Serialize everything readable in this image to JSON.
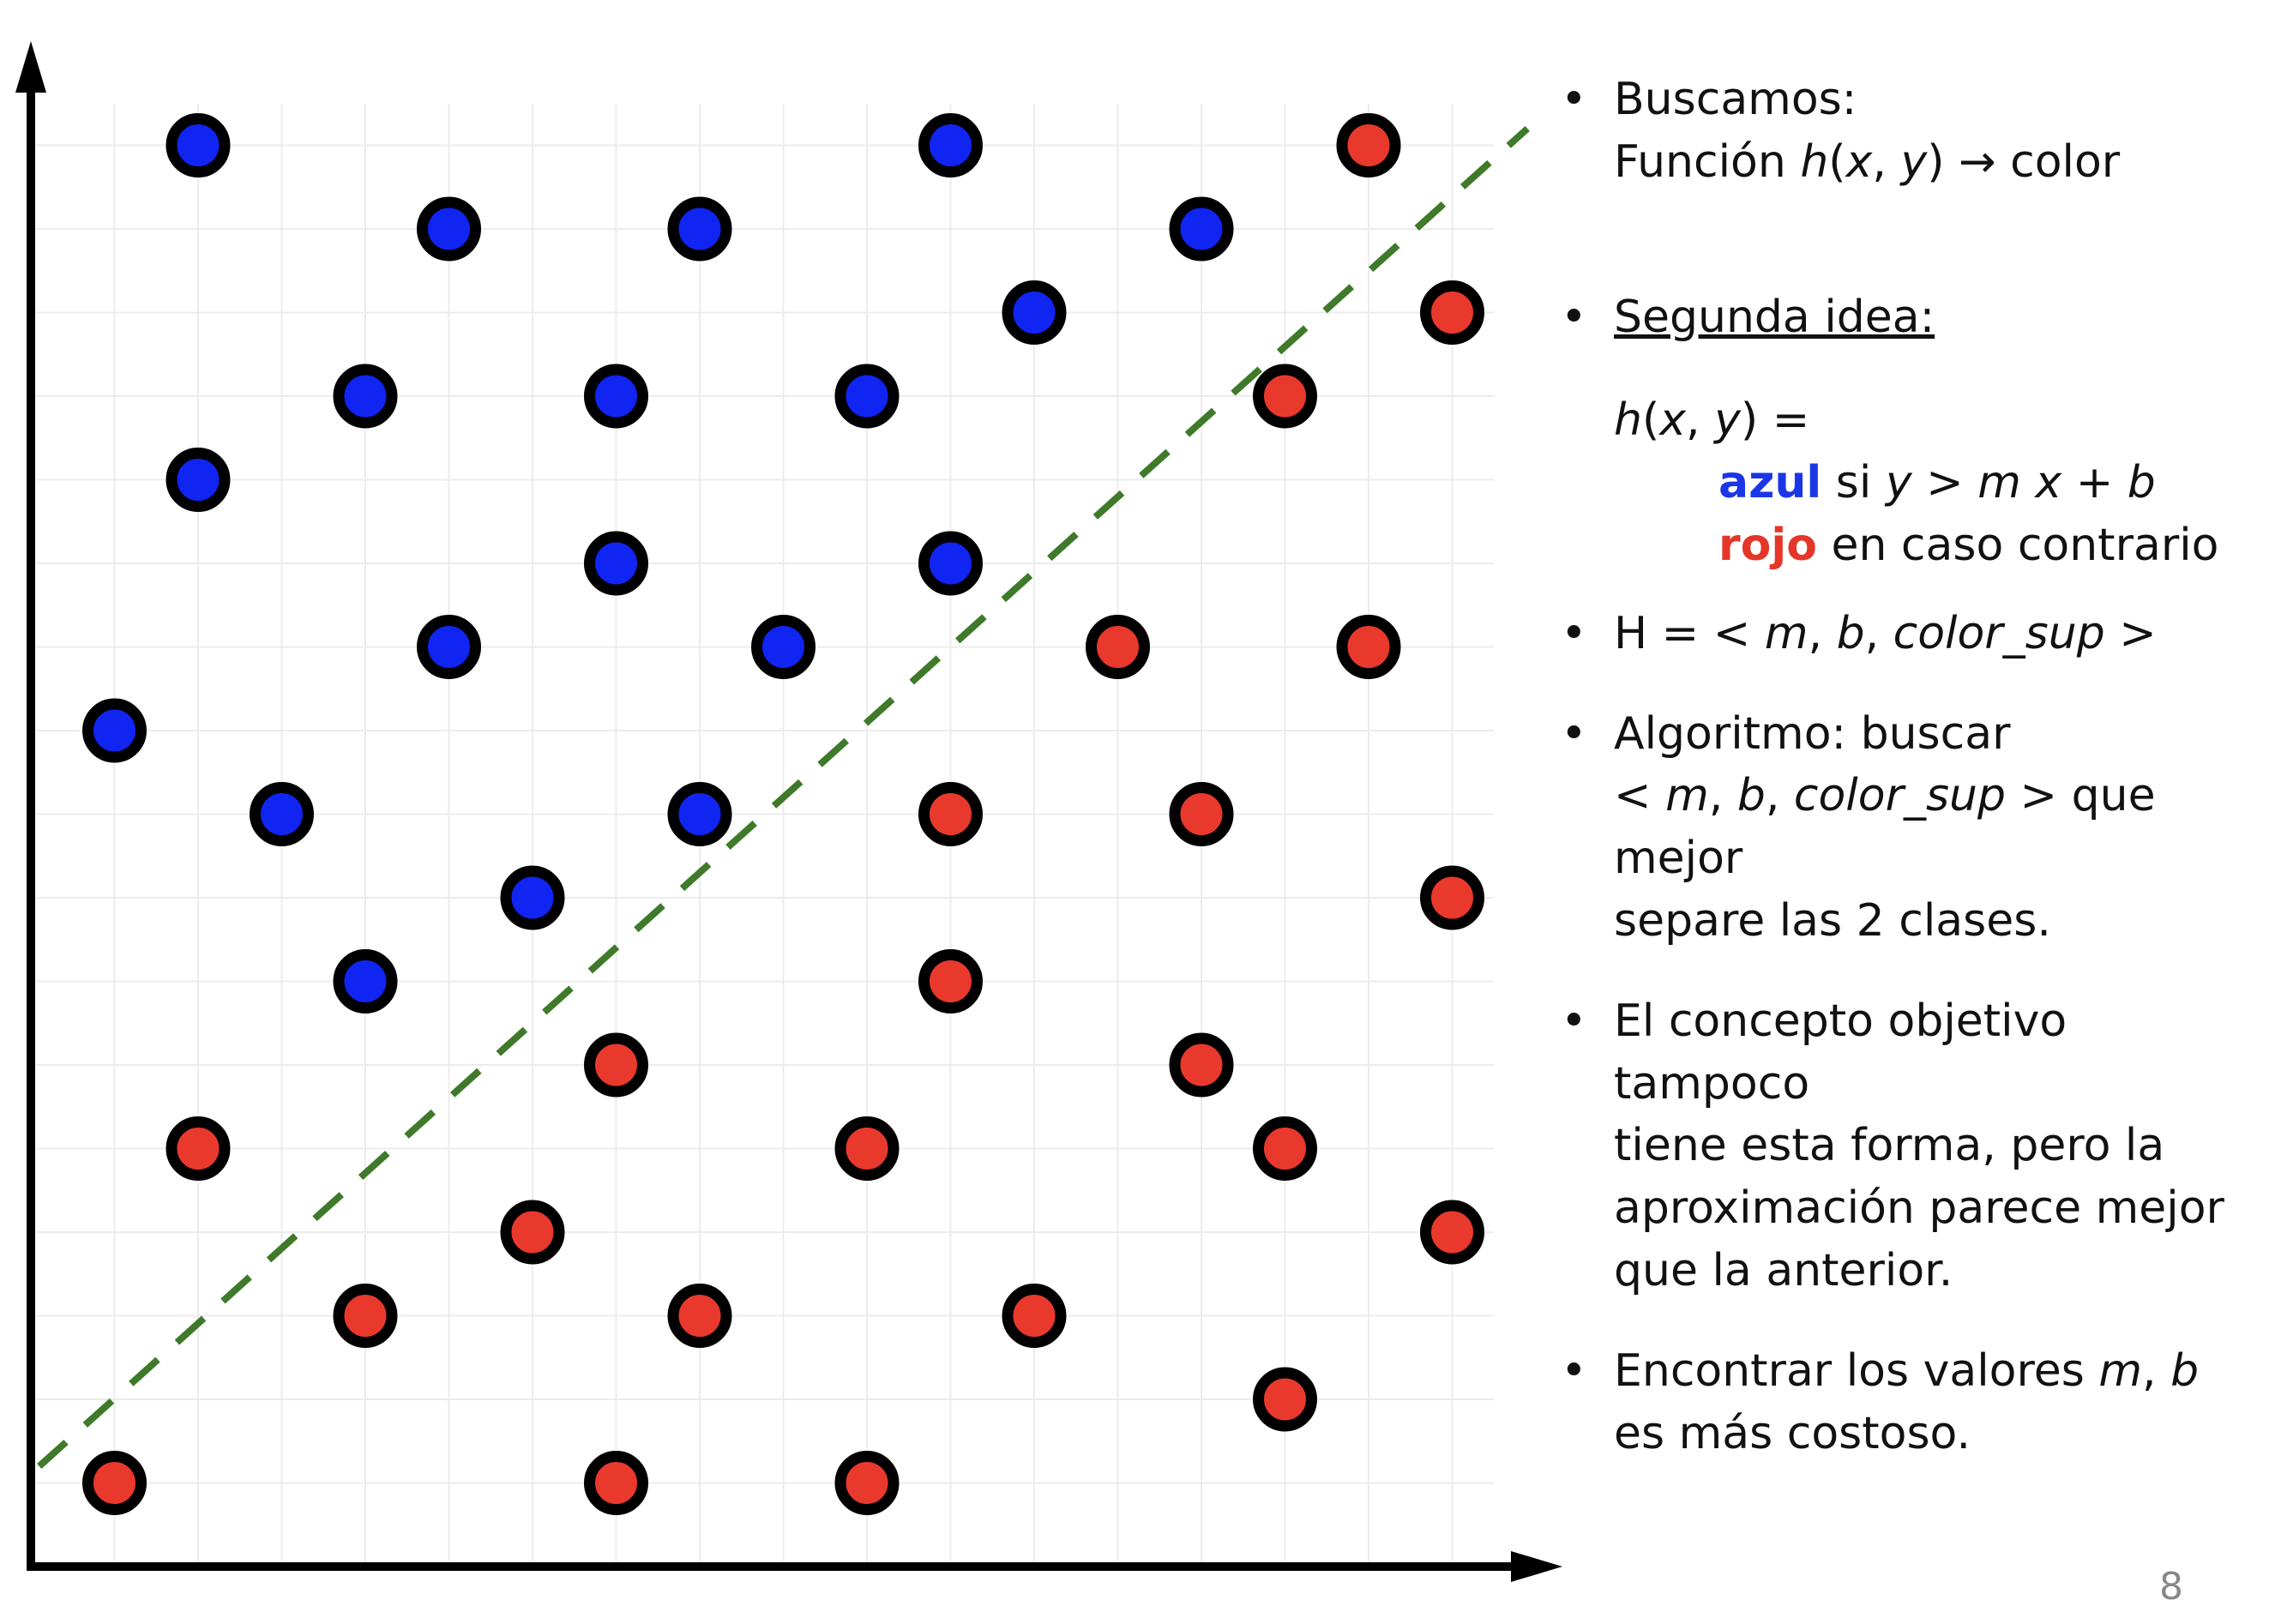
{
  "chart_data": {
    "type": "scatter",
    "xlim": [
      0,
      17.5
    ],
    "ylim": [
      0,
      17.5
    ],
    "grid": true,
    "colors": {
      "blue": "#1024f2",
      "red": "#e8392c",
      "outline": "#000000",
      "line": "#3f7a2a"
    },
    "series": [
      {
        "color": "blue",
        "points": [
          [
            2,
            17
          ],
          [
            11,
            17
          ],
          [
            5,
            16
          ],
          [
            8,
            16
          ],
          [
            14,
            16
          ],
          [
            12,
            15
          ],
          [
            4,
            14
          ],
          [
            7,
            14
          ],
          [
            10,
            14
          ],
          [
            2,
            13
          ],
          [
            7,
            12
          ],
          [
            11,
            12
          ],
          [
            5,
            11
          ],
          [
            9,
            11
          ],
          [
            1,
            10
          ],
          [
            3,
            9
          ],
          [
            8,
            9
          ],
          [
            6,
            8
          ],
          [
            4,
            7
          ]
        ]
      },
      {
        "color": "red",
        "points": [
          [
            16,
            17
          ],
          [
            17,
            15
          ],
          [
            15,
            14
          ],
          [
            13,
            11
          ],
          [
            16,
            11
          ],
          [
            11,
            9
          ],
          [
            14,
            9
          ],
          [
            17,
            8
          ],
          [
            11,
            7
          ],
          [
            7,
            6
          ],
          [
            14,
            6
          ],
          [
            2,
            5
          ],
          [
            10,
            5
          ],
          [
            15,
            5
          ],
          [
            6,
            4
          ],
          [
            17,
            4
          ],
          [
            4,
            3
          ],
          [
            8,
            3
          ],
          [
            12,
            3
          ],
          [
            15,
            2
          ],
          [
            1,
            1
          ],
          [
            7,
            1
          ],
          [
            10,
            1
          ]
        ]
      }
    ],
    "separator": {
      "x": [
        0.1,
        17.9
      ],
      "y": [
        1.2,
        17.2
      ]
    }
  },
  "bullets": {
    "buscamos_1": "Buscamos:",
    "buscamos_2a": "Función ",
    "buscamos_h": "h",
    "buscamos_paren": "(",
    "buscamos_x": "x",
    "buscamos_comma": ", ",
    "buscamos_y": "y",
    "buscamos_2b": ") → color",
    "segunda": "Segunda idea:",
    "formula_h": "h",
    "formula_open": "(",
    "formula_x": "x",
    "formula_comma": ", ",
    "formula_y": "y",
    "formula_eq": ") =",
    "azul": "azul",
    "azul_si": " si ",
    "azul_cond": "y > m x + b",
    "rojo": "rojo",
    "rojo_rest": " en caso contrario",
    "h_prefix": "H = < ",
    "h_m": "m",
    "h_sep1": ", ",
    "h_b": "b",
    "h_sep2": ", ",
    "h_color": "color_sup",
    "h_suffix": " >",
    "alg_1": "Algoritmo: buscar",
    "alg_2a": "< ",
    "alg_m": "m",
    "alg_sep1": ", ",
    "alg_b": "b",
    "alg_sep2": ", ",
    "alg_color": "color_sup",
    "alg_2b": " > que mejor",
    "alg_3": "separe las 2 clases.",
    "concepto_1": "El concepto objetivo tampoco",
    "concepto_2": "tiene esta forma, pero la",
    "concepto_3": "aproximación parece mejor",
    "concepto_4": "que la anterior.",
    "encontrar_1a": "Encontrar los valores ",
    "encontrar_m": "m",
    "encontrar_sep": ", ",
    "encontrar_b": "b",
    "encontrar_2": "es más costoso."
  },
  "page_number": "8"
}
